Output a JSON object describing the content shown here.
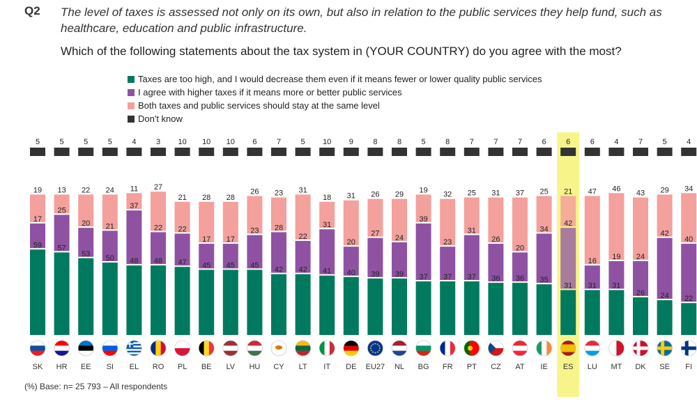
{
  "question": {
    "number": "Q2",
    "intro": "The level of taxes is assessed not only on its own, but also in relation to the public services they help fund, such as healthcare, education and public infrastructure.",
    "text": "Which of the following statements about the tax system in (YOUR COUNTRY) do you agree with the most?"
  },
  "footnote": "(%) Base: n= 25 793 – All respondents",
  "colors": {
    "decrease": "#007a5e",
    "higher": "#8f52a3",
    "same": "#f4a09c",
    "dont_know": "#333333",
    "highlight": "#f7f58a"
  },
  "chart_data": {
    "type": "bar",
    "stacked": true,
    "highlight": "ES",
    "categories": [
      "SK",
      "HR",
      "EE",
      "SI",
      "EL",
      "RO",
      "PL",
      "BE",
      "LV",
      "HU",
      "CY",
      "LT",
      "IT",
      "DE",
      "EU27",
      "NL",
      "BG",
      "FR",
      "PT",
      "CZ",
      "AT",
      "IE",
      "ES",
      "LU",
      "MT",
      "DK",
      "SE",
      "FI"
    ],
    "series": [
      {
        "key": "decrease",
        "name": "Taxes are too high, and I would decrease them even if it means fewer or lower quality public services",
        "values": [
          59,
          57,
          53,
          50,
          48,
          48,
          47,
          45,
          45,
          45,
          42,
          42,
          41,
          40,
          39,
          39,
          37,
          37,
          37,
          36,
          36,
          35,
          31,
          31,
          31,
          26,
          24,
          22
        ]
      },
      {
        "key": "higher",
        "name": "I agree with higher taxes if it means more or better public services",
        "values": [
          17,
          25,
          20,
          21,
          37,
          22,
          22,
          17,
          17,
          23,
          28,
          22,
          31,
          20,
          27,
          24,
          39,
          23,
          31,
          26,
          20,
          34,
          42,
          16,
          19,
          24,
          42,
          40
        ]
      },
      {
        "key": "same",
        "name": "Both taxes and public services should stay at the same level",
        "values": [
          19,
          13,
          22,
          24,
          11,
          27,
          21,
          28,
          28,
          26,
          23,
          31,
          18,
          31,
          26,
          29,
          19,
          32,
          25,
          31,
          37,
          25,
          21,
          47,
          46,
          43,
          29,
          34
        ]
      },
      {
        "key": "dont_know",
        "name": "Don't know",
        "values": [
          5,
          5,
          5,
          5,
          4,
          3,
          10,
          10,
          10,
          6,
          7,
          5,
          10,
          9,
          8,
          8,
          5,
          8,
          7,
          7,
          7,
          6,
          6,
          6,
          4,
          7,
          5,
          4
        ]
      }
    ],
    "unit": "%"
  },
  "flags": {
    "SK": {
      "icon": "slovakia-flag-icon",
      "colors": [
        "#ffffff",
        "#0b4ea2",
        "#ee1c25"
      ]
    },
    "HR": {
      "icon": "croatia-flag-icon",
      "colors": [
        "#ff0000",
        "#ffffff",
        "#171796"
      ]
    },
    "EE": {
      "icon": "estonia-flag-icon",
      "colors": [
        "#0072ce",
        "#000000",
        "#ffffff"
      ]
    },
    "SI": {
      "icon": "slovenia-flag-icon",
      "colors": [
        "#ffffff",
        "#005ce5",
        "#ff0000"
      ]
    },
    "EL": {
      "icon": "greece-flag-icon",
      "colors": [
        "#0d5eaf",
        "#ffffff",
        "#0d5eaf"
      ]
    },
    "RO": {
      "icon": "romania-flag-icon",
      "colors": [
        "#002b7f",
        "#fcd116",
        "#ce1126"
      ]
    },
    "PL": {
      "icon": "poland-flag-icon",
      "colors": [
        "#ffffff",
        "#dc143c"
      ]
    },
    "BE": {
      "icon": "belgium-flag-icon",
      "colors": [
        "#000000",
        "#fdda24",
        "#ef3340"
      ]
    },
    "LV": {
      "icon": "latvia-flag-icon",
      "colors": [
        "#9e3039",
        "#ffffff",
        "#9e3039"
      ]
    },
    "HU": {
      "icon": "hungary-flag-icon",
      "colors": [
        "#ce2939",
        "#ffffff",
        "#477050"
      ]
    },
    "CY": {
      "icon": "cyprus-flag-icon",
      "colors": [
        "#ffffff",
        "#d57800"
      ]
    },
    "LT": {
      "icon": "lithuania-flag-icon",
      "colors": [
        "#fdb913",
        "#006a44",
        "#c1272d"
      ]
    },
    "IT": {
      "icon": "italy-flag-icon",
      "colors": [
        "#009246",
        "#ffffff",
        "#ce2b37"
      ]
    },
    "DE": {
      "icon": "germany-flag-icon",
      "colors": [
        "#000000",
        "#dd0000",
        "#ffce00"
      ]
    },
    "EU27": {
      "icon": "eu-flag-icon",
      "colors": [
        "#003399",
        "#ffcc00"
      ]
    },
    "NL": {
      "icon": "netherlands-flag-icon",
      "colors": [
        "#ae1c28",
        "#ffffff",
        "#21468b"
      ]
    },
    "BG": {
      "icon": "bulgaria-flag-icon",
      "colors": [
        "#ffffff",
        "#00966e",
        "#d62612"
      ]
    },
    "FR": {
      "icon": "france-flag-icon",
      "colors": [
        "#002395",
        "#ffffff",
        "#ed2939"
      ]
    },
    "PT": {
      "icon": "portugal-flag-icon",
      "colors": [
        "#006600",
        "#ff0000"
      ]
    },
    "CZ": {
      "icon": "czechia-flag-icon",
      "colors": [
        "#ffffff",
        "#d7141a",
        "#11457e"
      ]
    },
    "AT": {
      "icon": "austria-flag-icon",
      "colors": [
        "#ed2939",
        "#ffffff",
        "#ed2939"
      ]
    },
    "IE": {
      "icon": "ireland-flag-icon",
      "colors": [
        "#169b62",
        "#ffffff",
        "#ff883e"
      ]
    },
    "ES": {
      "icon": "spain-flag-icon",
      "colors": [
        "#aa151b",
        "#f1bf00",
        "#aa151b"
      ]
    },
    "LU": {
      "icon": "luxembourg-flag-icon",
      "colors": [
        "#ed2939",
        "#ffffff",
        "#00a1de"
      ]
    },
    "MT": {
      "icon": "malta-flag-icon",
      "colors": [
        "#ffffff",
        "#cf142b"
      ]
    },
    "DK": {
      "icon": "denmark-flag-icon",
      "colors": [
        "#c8102e",
        "#ffffff"
      ]
    },
    "SE": {
      "icon": "sweden-flag-icon",
      "colors": [
        "#006aa7",
        "#fecc00"
      ]
    },
    "FI": {
      "icon": "finland-flag-icon",
      "colors": [
        "#ffffff",
        "#003580"
      ]
    }
  }
}
